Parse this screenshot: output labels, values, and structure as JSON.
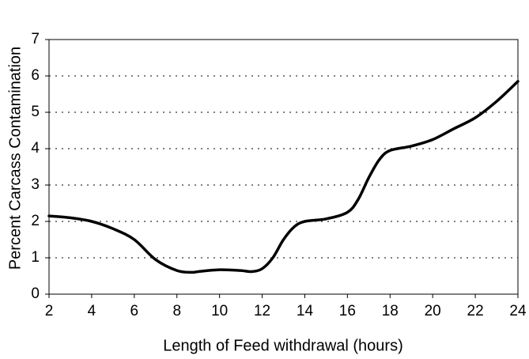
{
  "chart_data": {
    "type": "line",
    "x_label": "Length of Feed withdrawal (hours)",
    "y_label": "Percent Carcass Contamination",
    "x": [
      2,
      3,
      4,
      5,
      6,
      7,
      8,
      8.7,
      9,
      10,
      11,
      11.5,
      12,
      12.5,
      13,
      13.5,
      14,
      15,
      16,
      16.5,
      17,
      17.5,
      18,
      19,
      20,
      21,
      22,
      23,
      24
    ],
    "series": [
      {
        "color": "#000000",
        "values": [
          2.15,
          2.1,
          2.0,
          1.8,
          1.5,
          0.95,
          0.65,
          0.6,
          0.62,
          0.67,
          0.65,
          0.62,
          0.7,
          1.0,
          1.5,
          1.85,
          2.0,
          2.07,
          2.25,
          2.6,
          3.2,
          3.7,
          3.95,
          4.07,
          4.25,
          4.55,
          4.85,
          5.3,
          5.85
        ]
      }
    ],
    "xlim": [
      2,
      24
    ],
    "xticks": [
      2,
      4,
      6,
      8,
      10,
      12,
      14,
      16,
      18,
      20,
      22,
      24
    ],
    "ylim": [
      0,
      7
    ],
    "yticks": [
      0,
      1,
      2,
      3,
      4,
      5,
      6,
      7
    ],
    "grid": true
  }
}
